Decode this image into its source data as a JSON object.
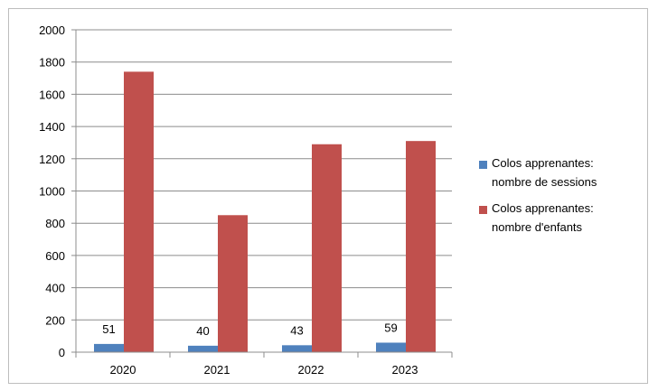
{
  "chart_data": {
    "type": "bar",
    "categories": [
      "2020",
      "2021",
      "2022",
      "2023"
    ],
    "series": [
      {
        "name": "Colos apprenantes: nombre de sessions",
        "values": [
          51,
          40,
          43,
          59
        ],
        "color": "#4f81bd",
        "data_labels": [
          "51",
          "40",
          "43",
          "59"
        ]
      },
      {
        "name": "Colos apprenantes: nombre d'enfants",
        "values": [
          1740,
          850,
          1290,
          1310
        ],
        "color": "#c0504d"
      }
    ],
    "y_ticks": [
      "0",
      "200",
      "400",
      "600",
      "800",
      "1000",
      "1200",
      "1400",
      "1600",
      "1800",
      "2000"
    ],
    "ylim": [
      0,
      2000
    ],
    "grid": true,
    "legend_position": "right"
  },
  "legend": {
    "items": [
      {
        "line1": "Colos apprenantes:",
        "line2": "nombre de sessions",
        "color": "#4f81bd"
      },
      {
        "line1": "Colos apprenantes:",
        "line2": "nombre d'enfants",
        "color": "#c0504d"
      }
    ]
  }
}
